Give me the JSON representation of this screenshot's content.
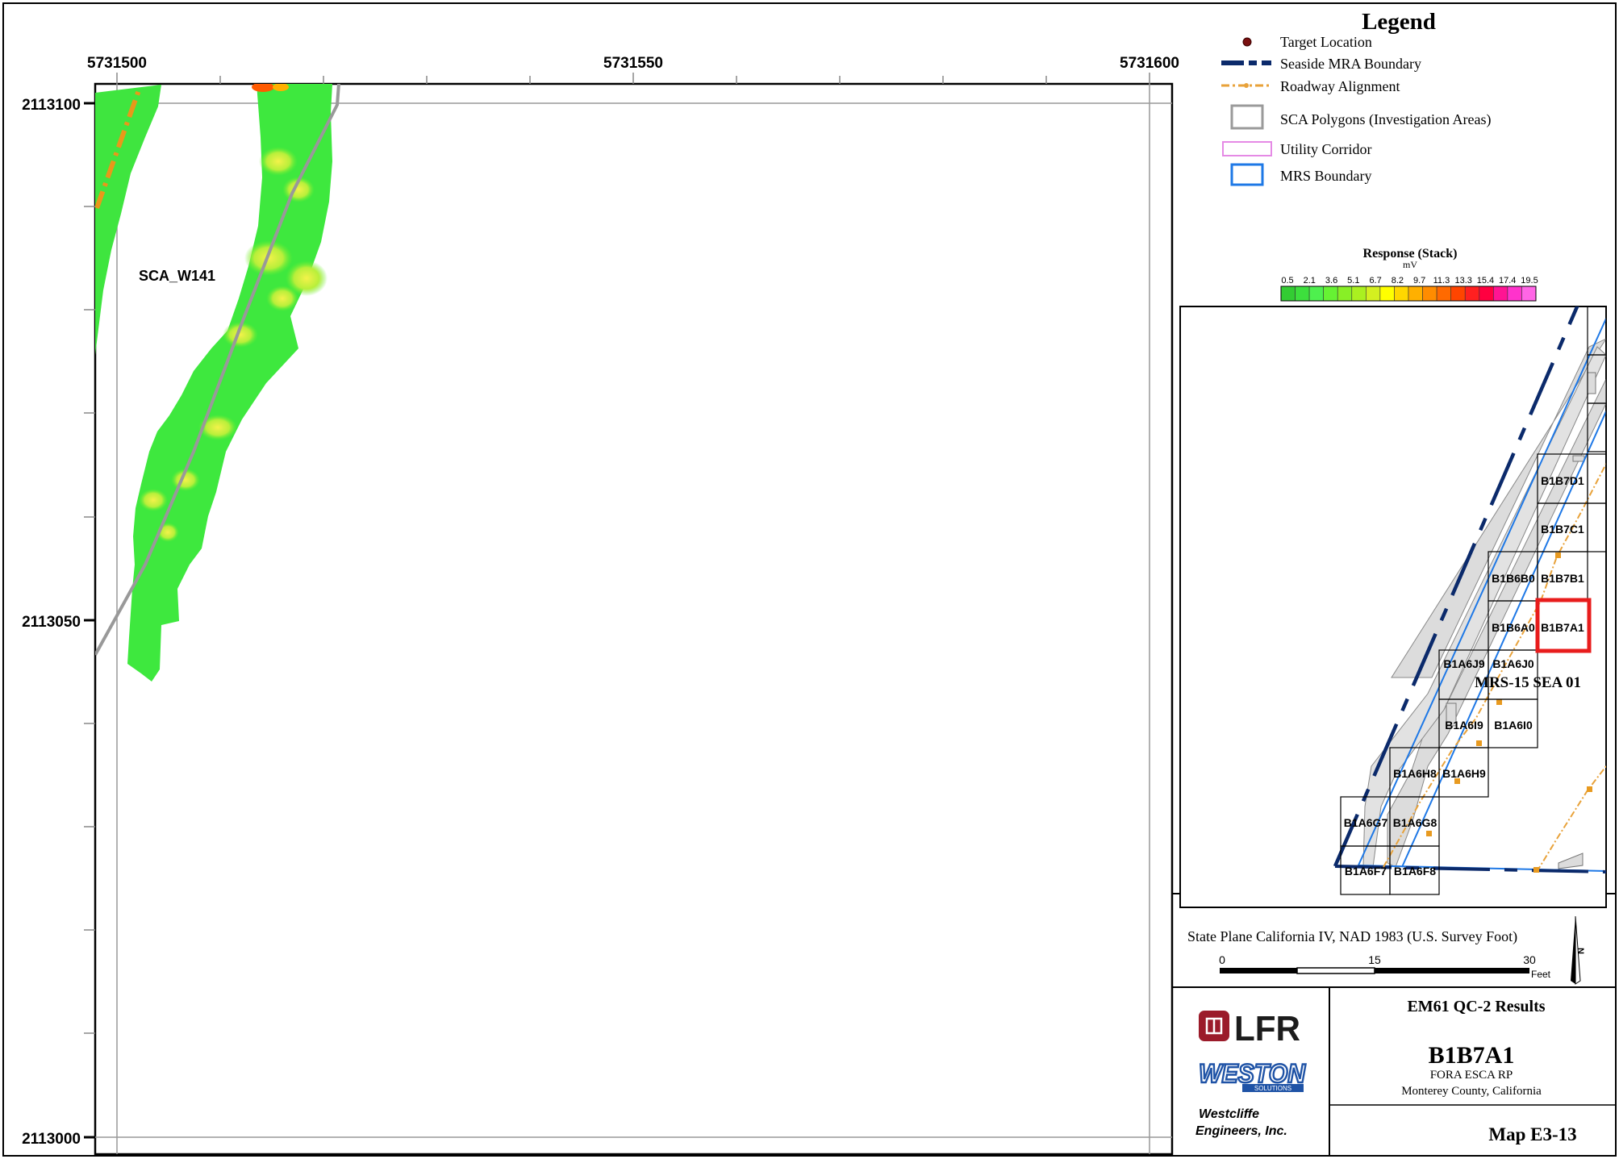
{
  "map": {
    "x_ticks": [
      "5731500",
      "5731550",
      "5731600"
    ],
    "y_ticks": [
      "2113100",
      "2113050",
      "2113000"
    ],
    "area_label": "SCA_W141"
  },
  "legend": {
    "title": "Legend",
    "items": [
      {
        "label": "Target Location",
        "icon": "target-dot-icon",
        "color": "#7a1010"
      },
      {
        "label": "Seaside MRA Boundary",
        "icon": "dashed-navy-line-icon",
        "color": "#0b2a6b"
      },
      {
        "label": "Roadway Alignment",
        "icon": "dash-dot-orange-line-icon",
        "color": "#e8a23a"
      },
      {
        "label": "SCA Polygons (Investigation Areas)",
        "icon": "gray-box-icon",
        "color": "#9a9a9a"
      },
      {
        "label": "Utility Corridor",
        "icon": "pink-box-icon",
        "color": "#e58ae5"
      },
      {
        "label": "MRS Boundary",
        "icon": "blue-box-icon",
        "color": "#1e78e6"
      }
    ]
  },
  "color_scale": {
    "title": "Response (Stack)",
    "unit": "mV",
    "labels": [
      "0.5",
      "2.1",
      "3.6",
      "5.1",
      "6.7",
      "8.2",
      "9.7",
      "11.3",
      "13.3",
      "15.4",
      "17.4",
      "19.5"
    ],
    "colors": [
      "#33cc33",
      "#3ddf3d",
      "#4ef04e",
      "#66f233",
      "#88ef26",
      "#aaf020",
      "#d4f020",
      "#ffff00",
      "#ffd700",
      "#ffb000",
      "#ff8c00",
      "#ff6a00",
      "#ff4500",
      "#ff2020",
      "#ff0040",
      "#ff1493",
      "#ff33cc",
      "#ff66e6"
    ]
  },
  "inset": {
    "grid_labels": [
      "B1B7D1",
      "B1B7C1",
      "B1B6B0",
      "B1B7B1",
      "B1B6A0",
      "B1B7A1",
      "B1A6J9",
      "B1A6J0",
      "B1A6I9",
      "B1A6I0",
      "B1A6H8",
      "B1A6H9",
      "B1A6G7",
      "B1A6G8",
      "B1A6F7",
      "B1A6F8"
    ],
    "highlight": "B1B7A1",
    "mrs_label": "MRS-15 SEA 01"
  },
  "projection": "State Plane California IV, NAD 1983 (U.S. Survey Foot)",
  "scalebar": {
    "ticks": [
      "0",
      "15",
      "30"
    ],
    "unit": "Feet"
  },
  "title_block": {
    "logo_lfr": "LFR",
    "logo_weston": "WESTON",
    "logo_weston_sub": "SOLUTIONS",
    "company_line1": "Westcliffe",
    "company_line2": "Engineers, Inc.",
    "heading": "EM61 QC-2 Results",
    "grid_id": "B1B7A1",
    "project": "FORA ESCA RP",
    "location": "Monterey County, California",
    "map_number": "Map E3-13"
  }
}
